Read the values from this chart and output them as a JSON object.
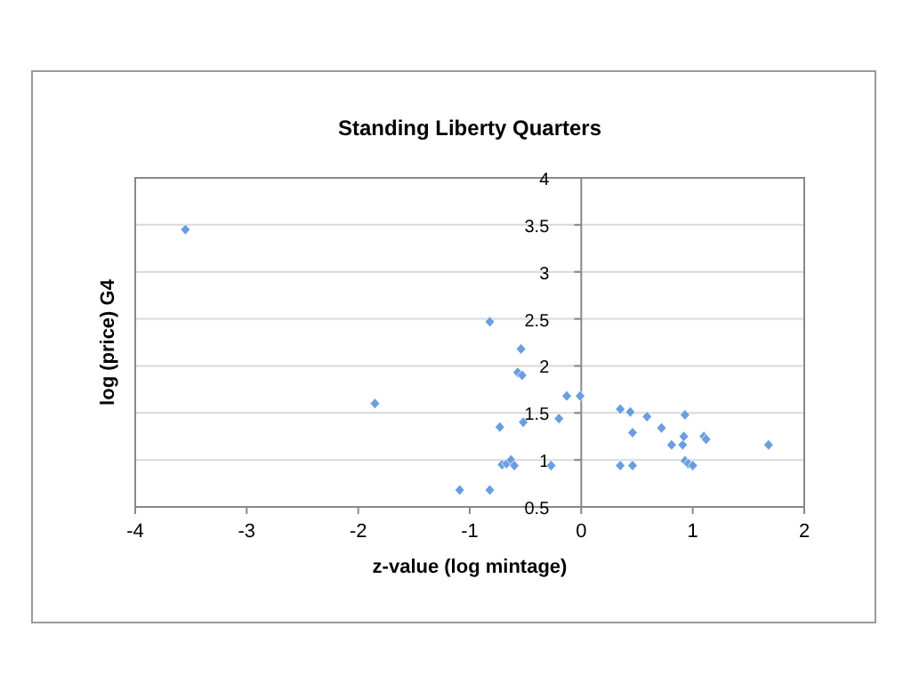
{
  "chart_data": {
    "type": "scatter",
    "title": "Standing Liberty Quarters",
    "xlabel": "z-value (log mintage)",
    "ylabel": "log (price) G4",
    "x": [
      -3.55,
      -1.85,
      -0.82,
      -0.54,
      -0.57,
      -0.53,
      -0.13,
      -0.01,
      -0.2,
      -0.73,
      -0.52,
      -0.71,
      -0.67,
      -0.63,
      -0.6,
      -0.27,
      -1.09,
      -0.82,
      0.35,
      0.44,
      0.59,
      0.72,
      0.93,
      0.46,
      0.81,
      0.91,
      0.92,
      1.1,
      1.12,
      1.68,
      0.35,
      0.46,
      0.93,
      0.96,
      1.0
    ],
    "values": [
      3.45,
      1.6,
      2.47,
      2.18,
      1.93,
      1.9,
      1.68,
      1.68,
      1.44,
      1.35,
      1.4,
      0.95,
      0.96,
      1.0,
      0.94,
      0.94,
      0.68,
      0.68,
      1.54,
      1.51,
      1.46,
      1.34,
      1.48,
      1.29,
      1.16,
      1.16,
      1.25,
      1.25,
      1.22,
      1.16,
      0.94,
      0.94,
      0.99,
      0.96,
      0.94
    ],
    "color": "#6a9ee0",
    "marker": "diamond",
    "xlim": [
      -4,
      2
    ],
    "xticks": [
      -4,
      -3,
      -2,
      -1,
      0,
      1,
      2
    ],
    "ylim": [
      0.5,
      4
    ],
    "yticks": [
      0.5,
      1,
      1.5,
      2,
      2.5,
      3,
      3.5,
      4
    ],
    "grid": "y"
  }
}
